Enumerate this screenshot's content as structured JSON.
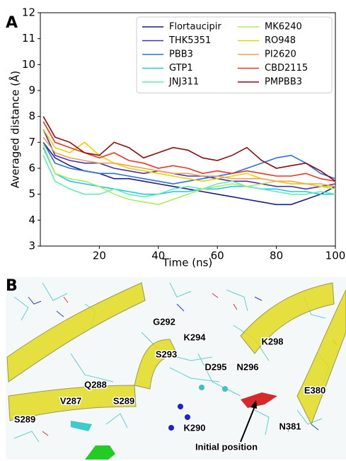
{
  "chart_data": {
    "type": "line",
    "panel_label": "A",
    "x_label": "Time (ns)",
    "y_label": "Averaged distance (Å)",
    "xlim": [
      0,
      100
    ],
    "xticks": [
      20,
      40,
      60,
      80,
      100
    ],
    "ylim": [
      3,
      12
    ],
    "yticks": [
      3,
      4,
      5,
      6,
      7,
      8,
      9,
      10,
      11,
      12
    ],
    "legend": "upper right",
    "legend_columns": 2,
    "x": [
      1,
      5,
      10,
      15,
      20,
      25,
      30,
      35,
      40,
      45,
      50,
      55,
      60,
      65,
      70,
      75,
      80,
      85,
      90,
      95,
      100
    ],
    "series": [
      {
        "name": "Flortaucipir",
        "color": "#1b1b8a",
        "values": [
          7,
          6.4,
          6.1,
          5.9,
          5.8,
          5.6,
          5.6,
          5.5,
          5.4,
          5.3,
          5.2,
          5.1,
          5.0,
          4.9,
          4.8,
          4.7,
          4.6,
          4.6,
          4.8,
          5.0,
          5.3
        ]
      },
      {
        "name": "THK5351",
        "color": "#4a2fb4",
        "values": [
          7.5,
          6.5,
          6.3,
          6.2,
          6.2,
          6.0,
          5.9,
          5.8,
          5.9,
          5.8,
          5.7,
          5.7,
          5.6,
          5.5,
          5.5,
          5.4,
          5.3,
          5.3,
          5.2,
          5.3,
          5.4
        ]
      },
      {
        "name": "PBB3",
        "color": "#2b6fdc",
        "values": [
          7,
          6.2,
          6.0,
          5.9,
          5.8,
          5.8,
          5.7,
          5.6,
          5.5,
          5.4,
          5.5,
          5.6,
          5.7,
          5.8,
          6.0,
          6.2,
          6.4,
          6.5,
          6.2,
          5.8,
          5.6
        ]
      },
      {
        "name": "GTP1",
        "color": "#22c4f0",
        "values": [
          6.8,
          5.8,
          5.5,
          5.4,
          5.3,
          5.2,
          5.1,
          5.0,
          5.0,
          5.1,
          5.1,
          5.2,
          5.2,
          5.3,
          5.3,
          5.2,
          5.2,
          5.1,
          5.1,
          5.0,
          5.0
        ]
      },
      {
        "name": "JNJ311",
        "color": "#5cf0b0",
        "values": [
          6.5,
          5.5,
          5.2,
          5.0,
          5.0,
          5.2,
          5.0,
          4.9,
          5.0,
          5.2,
          5.3,
          5.2,
          5.4,
          5.5,
          5.3,
          5.2,
          5.1,
          5.0,
          5.0,
          5.1,
          5.0
        ]
      },
      {
        "name": "MK6240",
        "color": "#a8ee5a",
        "values": [
          6.9,
          5.8,
          5.6,
          5.5,
          5.3,
          5.0,
          4.8,
          4.7,
          4.6,
          4.8,
          5.0,
          5.2,
          5.3,
          5.4,
          5.3,
          5.4,
          5.5,
          5.4,
          5.4,
          5.3,
          5.2
        ]
      },
      {
        "name": "RO948",
        "color": "#e6d200",
        "values": [
          7.5,
          6.8,
          6.6,
          7.0,
          6.5,
          6.2,
          6.0,
          5.9,
          5.8,
          5.7,
          5.6,
          5.5,
          5.6,
          5.7,
          5.8,
          5.6,
          5.5,
          5.4,
          5.4,
          5.3,
          5.3
        ]
      },
      {
        "name": "PI2620",
        "color": "#f5a04e",
        "values": [
          7.2,
          6.6,
          6.4,
          6.3,
          6.2,
          6.2,
          6.1,
          6.0,
          5.9,
          5.8,
          5.8,
          5.7,
          5.7,
          5.6,
          5.6,
          5.6,
          5.5,
          5.5,
          5.4,
          5.4,
          5.3
        ]
      },
      {
        "name": "CBD2115",
        "color": "#e8361e",
        "values": [
          7.8,
          7.0,
          6.8,
          6.6,
          6.4,
          6.6,
          6.3,
          6.2,
          6.0,
          6.1,
          6.0,
          5.8,
          5.9,
          5.8,
          5.9,
          5.8,
          5.7,
          5.7,
          5.8,
          5.6,
          5.5
        ]
      },
      {
        "name": "PMPBB3",
        "color": "#8c0b0b",
        "values": [
          8,
          7.2,
          7.0,
          6.6,
          6.5,
          7.0,
          6.8,
          6.4,
          6.6,
          6.8,
          6.7,
          6.4,
          6.3,
          6.5,
          6.8,
          6.3,
          6.0,
          6.1,
          6.2,
          5.9,
          5.5
        ]
      }
    ]
  },
  "panel_b": {
    "panel_label": "B",
    "labels": [
      "G292",
      "K294",
      "K298",
      "S293",
      "D295",
      "N296",
      "Q288",
      "V287",
      "S289",
      "S289",
      "E380",
      "N381",
      "K290",
      "Initial position"
    ]
  }
}
